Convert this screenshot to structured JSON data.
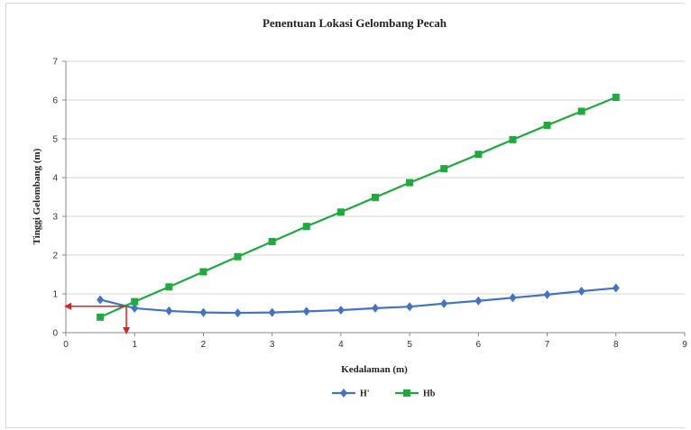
{
  "chart_data": {
    "type": "scatter",
    "title": "Penentuan Lokasi Gelombang Pecah",
    "xlabel": "Kedalaman (m)",
    "ylabel": "Tinggi Gelombang (m)",
    "xlim": [
      0,
      9
    ],
    "ylim": [
      0,
      7
    ],
    "x_ticks": [
      0,
      1,
      2,
      3,
      4,
      5,
      6,
      7,
      8,
      9
    ],
    "y_ticks": [
      0,
      1,
      2,
      3,
      4,
      5,
      6,
      7
    ],
    "grid": "horizontal",
    "legend_position": "bottom",
    "series": [
      {
        "name": "H'",
        "color": "#4472c4",
        "marker": "diamond",
        "x": [
          0.5,
          1.0,
          1.5,
          2.0,
          2.5,
          3.0,
          3.5,
          4.0,
          4.5,
          5.0,
          5.5,
          6.0,
          6.5,
          7.0,
          7.5,
          8.0
        ],
        "y": [
          0.85,
          0.63,
          0.56,
          0.52,
          0.51,
          0.52,
          0.55,
          0.58,
          0.63,
          0.67,
          0.75,
          0.82,
          0.9,
          0.98,
          1.07,
          1.15
        ]
      },
      {
        "name": "Hb",
        "color": "#1faa3d",
        "marker": "square",
        "x": [
          0.5,
          1.0,
          1.5,
          2.0,
          2.5,
          3.0,
          3.5,
          4.0,
          4.5,
          5.0,
          5.5,
          6.0,
          6.5,
          7.0,
          7.5,
          8.0
        ],
        "y": [
          0.4,
          0.8,
          1.18,
          1.57,
          1.96,
          2.35,
          2.74,
          3.11,
          3.49,
          3.87,
          4.23,
          4.6,
          4.98,
          5.35,
          5.71,
          6.07
        ]
      }
    ],
    "annotations": [
      {
        "type": "arrow",
        "color": "#e02020",
        "from": [
          0.88,
          0.68
        ],
        "to": [
          0,
          0.68
        ]
      },
      {
        "type": "arrow",
        "color": "#e02020",
        "from": [
          0.88,
          0.68
        ],
        "to": [
          0.88,
          0
        ]
      }
    ]
  }
}
